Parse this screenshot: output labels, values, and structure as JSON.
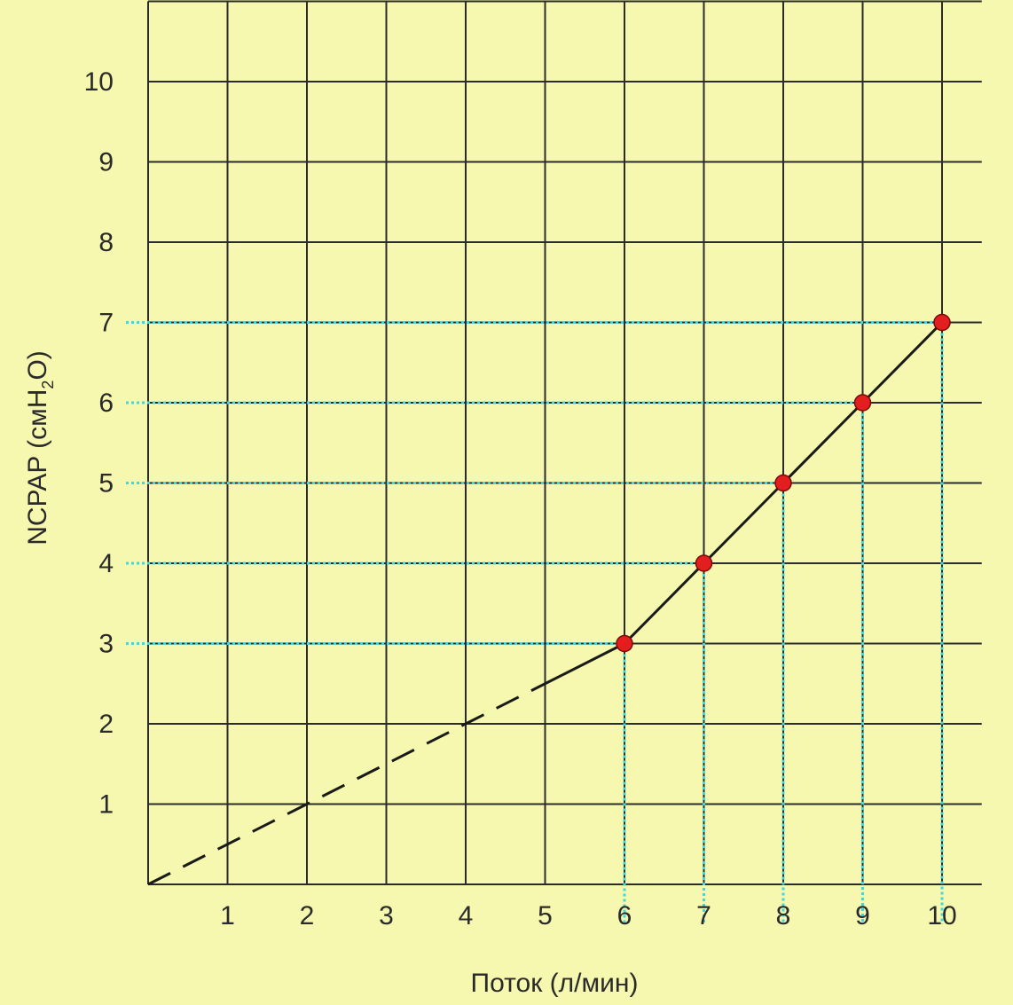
{
  "chart_data": {
    "type": "line",
    "xlabel": "Поток (л/мин)",
    "ylabel": {
      "base": "NCPAP (смH",
      "sub": "2",
      "end": "O)"
    },
    "x_ticks": [
      "1",
      "2",
      "3",
      "4",
      "5",
      "6",
      "7",
      "8",
      "9",
      "10"
    ],
    "y_ticks": [
      "1",
      "2",
      "3",
      "4",
      "5",
      "6",
      "7",
      "8",
      "9",
      "10"
    ],
    "xlim": [
      0,
      10
    ],
    "ylim": [
      0,
      11
    ],
    "grid": true,
    "series": [
      {
        "style": "dashed",
        "x": [
          0,
          2,
          4,
          5
        ],
        "y": [
          0,
          1,
          2,
          2.5
        ]
      },
      {
        "style": "solid",
        "x": [
          5,
          6,
          7,
          8,
          9,
          10
        ],
        "y": [
          2.5,
          3,
          4,
          5,
          6,
          7
        ]
      }
    ],
    "markers": {
      "x": [
        6,
        7,
        8,
        9,
        10
      ],
      "y": [
        3,
        4,
        5,
        6,
        7
      ]
    },
    "guide_lines": [
      3,
      4,
      5,
      6,
      7
    ],
    "colors": {
      "background": "#F5F8AE",
      "grid": "#2b2b2b",
      "line": "#1a1a1a",
      "guide": "#3FD8E0",
      "marker": "#E21E1E"
    }
  }
}
